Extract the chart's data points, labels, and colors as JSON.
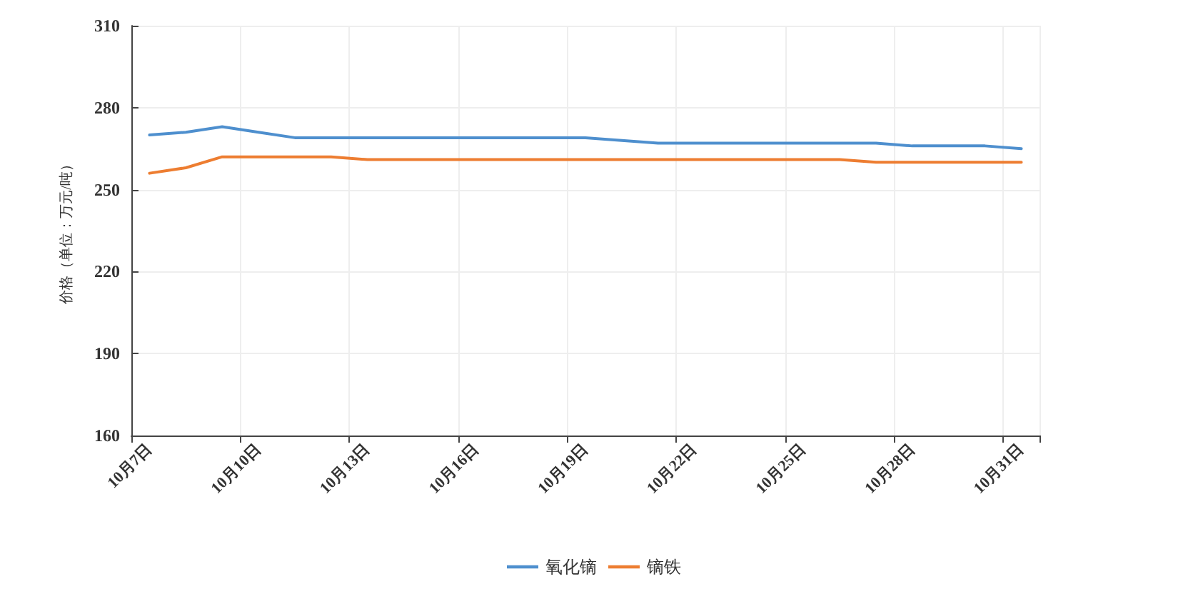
{
  "chart_data": {
    "type": "line",
    "ylabel": "价格（单位：万元/吨）",
    "categories": [
      "10月7日",
      null,
      null,
      "10月10日",
      null,
      null,
      "10月13日",
      null,
      null,
      "10月16日",
      null,
      null,
      "10月19日",
      null,
      null,
      "10月22日",
      null,
      null,
      "10月25日",
      null,
      null,
      "10月28日",
      null,
      null,
      "10月31日"
    ],
    "series": [
      {
        "name": "氧化镝",
        "color": "#4e8fce",
        "values": [
          270,
          271,
          273,
          271,
          269,
          269,
          269,
          269,
          269,
          269,
          269,
          269,
          269,
          268,
          267,
          267,
          267,
          267,
          267,
          267,
          267,
          266,
          266,
          266,
          265
        ]
      },
      {
        "name": "镝铁",
        "color": "#ed7d31",
        "values": [
          256,
          258,
          262,
          262,
          262,
          262,
          261,
          261,
          261,
          261,
          261,
          261,
          261,
          261,
          261,
          261,
          261,
          261,
          261,
          261,
          260,
          260,
          260,
          260,
          260
        ]
      }
    ],
    "ylim": [
      160,
      310
    ],
    "yticks": [
      160,
      190,
      220,
      250,
      280,
      310
    ],
    "grid": true,
    "legend": "bottom",
    "marker": "none",
    "line_style": "solid"
  }
}
